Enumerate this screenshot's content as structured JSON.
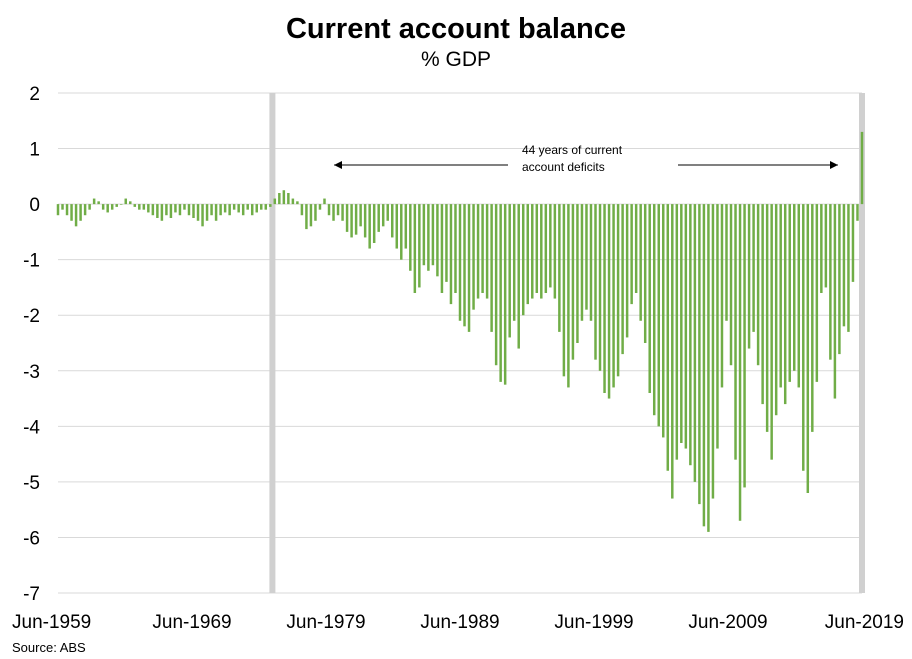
{
  "chart_data": {
    "type": "bar",
    "title": "Current account balance",
    "subtitle": "% GDP",
    "source": "Source: ABS",
    "xlabel": "",
    "ylabel": "",
    "ylim": [
      -7,
      2
    ],
    "yticks": [
      2,
      1,
      0,
      -1,
      -2,
      -3,
      -4,
      -5,
      -6,
      -7
    ],
    "xticks": [
      "Jun-1959",
      "Jun-1969",
      "Jun-1979",
      "Jun-1989",
      "Jun-1999",
      "Jun-2009",
      "Jun-2019"
    ],
    "grid": true,
    "bar_color": "#70ad47",
    "shade_color": "#d0d0d0",
    "frequency": "quarterly",
    "x_start": "Jun-1959",
    "x_end": "Jun-2019",
    "shaded_periods": [
      "Jun-1975",
      "Jun-2019"
    ],
    "annotation": {
      "line1": "44 years of current",
      "line2": "account deficits",
      "from": "Jun-1975",
      "to": "Jun-2019"
    },
    "series": [
      {
        "values": [
          -0.2,
          -0.1,
          -0.2,
          -0.3,
          -0.4,
          -0.3,
          -0.2,
          -0.1,
          0.1,
          0.05,
          -0.1,
          -0.15,
          -0.1,
          -0.05,
          0.0,
          0.1,
          0.05,
          -0.05,
          -0.1,
          -0.1,
          -0.15,
          -0.2,
          -0.25,
          -0.3,
          -0.2,
          -0.25,
          -0.15,
          -0.2,
          -0.1,
          -0.2,
          -0.25,
          -0.3,
          -0.4,
          -0.3,
          -0.2,
          -0.3,
          -0.2,
          -0.15,
          -0.2,
          -0.1,
          -0.15,
          -0.2,
          -0.1,
          -0.2,
          -0.15,
          -0.1,
          -0.1,
          -0.05,
          0.1,
          0.2,
          0.25,
          0.2,
          0.1,
          0.05,
          -0.2,
          -0.45,
          -0.4,
          -0.3,
          -0.1,
          0.1,
          -0.2,
          -0.3,
          -0.2,
          -0.3,
          -0.5,
          -0.6,
          -0.55,
          -0.4,
          -0.6,
          -0.8,
          -0.7,
          -0.5,
          -0.4,
          -0.3,
          -0.6,
          -0.8,
          -1.0,
          -0.8,
          -1.2,
          -1.6,
          -1.5,
          -1.1,
          -1.2,
          -1.1,
          -1.3,
          -1.6,
          -1.4,
          -1.8,
          -1.6,
          -2.1,
          -2.2,
          -2.3,
          -1.9,
          -1.7,
          -1.6,
          -1.7,
          -2.3,
          -2.9,
          -3.2,
          -3.25,
          -2.4,
          -2.1,
          -2.6,
          -2.0,
          -1.8,
          -1.7,
          -1.6,
          -1.7,
          -1.6,
          -1.5,
          -1.7,
          -2.3,
          -3.1,
          -3.3,
          -2.8,
          -2.5,
          -2.1,
          -1.9,
          -2.1,
          -2.8,
          -3.0,
          -3.4,
          -3.5,
          -3.3,
          -3.1,
          -2.7,
          -2.4,
          -1.8,
          -1.6,
          -2.1,
          -2.5,
          -3.4,
          -3.8,
          -4.0,
          -4.2,
          -4.8,
          -5.3,
          -4.6,
          -4.3,
          -4.4,
          -4.7,
          -5.0,
          -5.4,
          -5.8,
          -5.9,
          -5.3,
          -4.4,
          -3.3,
          -2.1,
          -2.9,
          -4.6,
          -5.7,
          -5.1,
          -2.6,
          -2.3,
          -2.9,
          -3.6,
          -4.1,
          -4.6,
          -3.8,
          -3.3,
          -3.6,
          -3.2,
          -3.0,
          -3.3,
          -4.8,
          -5.2,
          -4.1,
          -3.2,
          -1.6,
          -1.5,
          -2.8,
          -3.5,
          -2.7,
          -2.2,
          -2.3,
          -1.4,
          -0.3,
          1.3
        ]
      }
    ]
  }
}
